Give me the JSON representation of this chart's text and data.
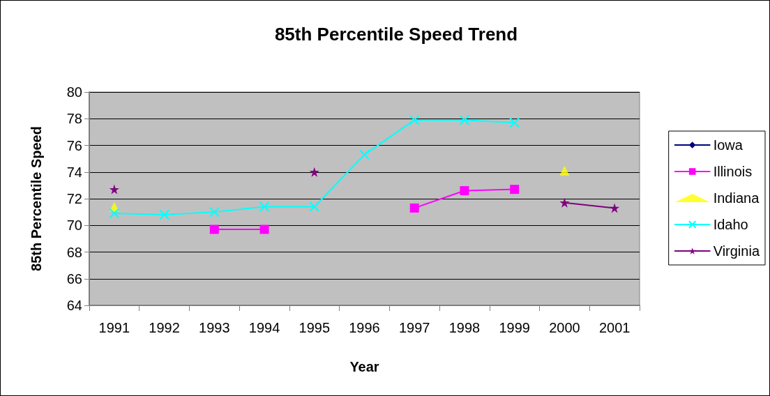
{
  "chart_data": {
    "type": "line",
    "title": "85th Percentile Speed Trend",
    "xlabel": "Year",
    "ylabel": "85th Percentile Speed",
    "categories": [
      "1991",
      "1992",
      "1993",
      "1994",
      "1995",
      "1996",
      "1997",
      "1998",
      "1999",
      "2000",
      "2001"
    ],
    "series": [
      {
        "name": "Iowa",
        "color": "#000080",
        "marker": "diamond",
        "values": [
          null,
          null,
          null,
          null,
          null,
          null,
          null,
          null,
          null,
          null,
          null
        ]
      },
      {
        "name": "Illinois",
        "color": "#ff00ff",
        "marker": "square",
        "values": [
          null,
          null,
          69.7,
          69.7,
          null,
          null,
          71.3,
          72.6,
          72.7,
          null,
          null
        ]
      },
      {
        "name": "Indiana",
        "type": "scatter",
        "color": "#ffff00",
        "marker": "triangle",
        "values": [
          71.4,
          null,
          null,
          null,
          null,
          null,
          null,
          null,
          null,
          74.1,
          null
        ]
      },
      {
        "name": "Idaho",
        "color": "#00ffff",
        "marker": "cross",
        "values": [
          70.9,
          70.8,
          71.0,
          71.4,
          71.4,
          75.3,
          77.9,
          77.9,
          77.7,
          null,
          null
        ]
      },
      {
        "name": "Virginia",
        "color": "#800080",
        "marker": "star",
        "values": [
          72.7,
          null,
          null,
          null,
          74.0,
          null,
          null,
          null,
          null,
          71.7,
          71.3
        ]
      }
    ],
    "ylim": [
      64,
      80
    ],
    "yticks": [
      64,
      66,
      68,
      70,
      72,
      74,
      76,
      78,
      80
    ],
    "grid": "y",
    "legend": "right",
    "line_style": "solid"
  }
}
